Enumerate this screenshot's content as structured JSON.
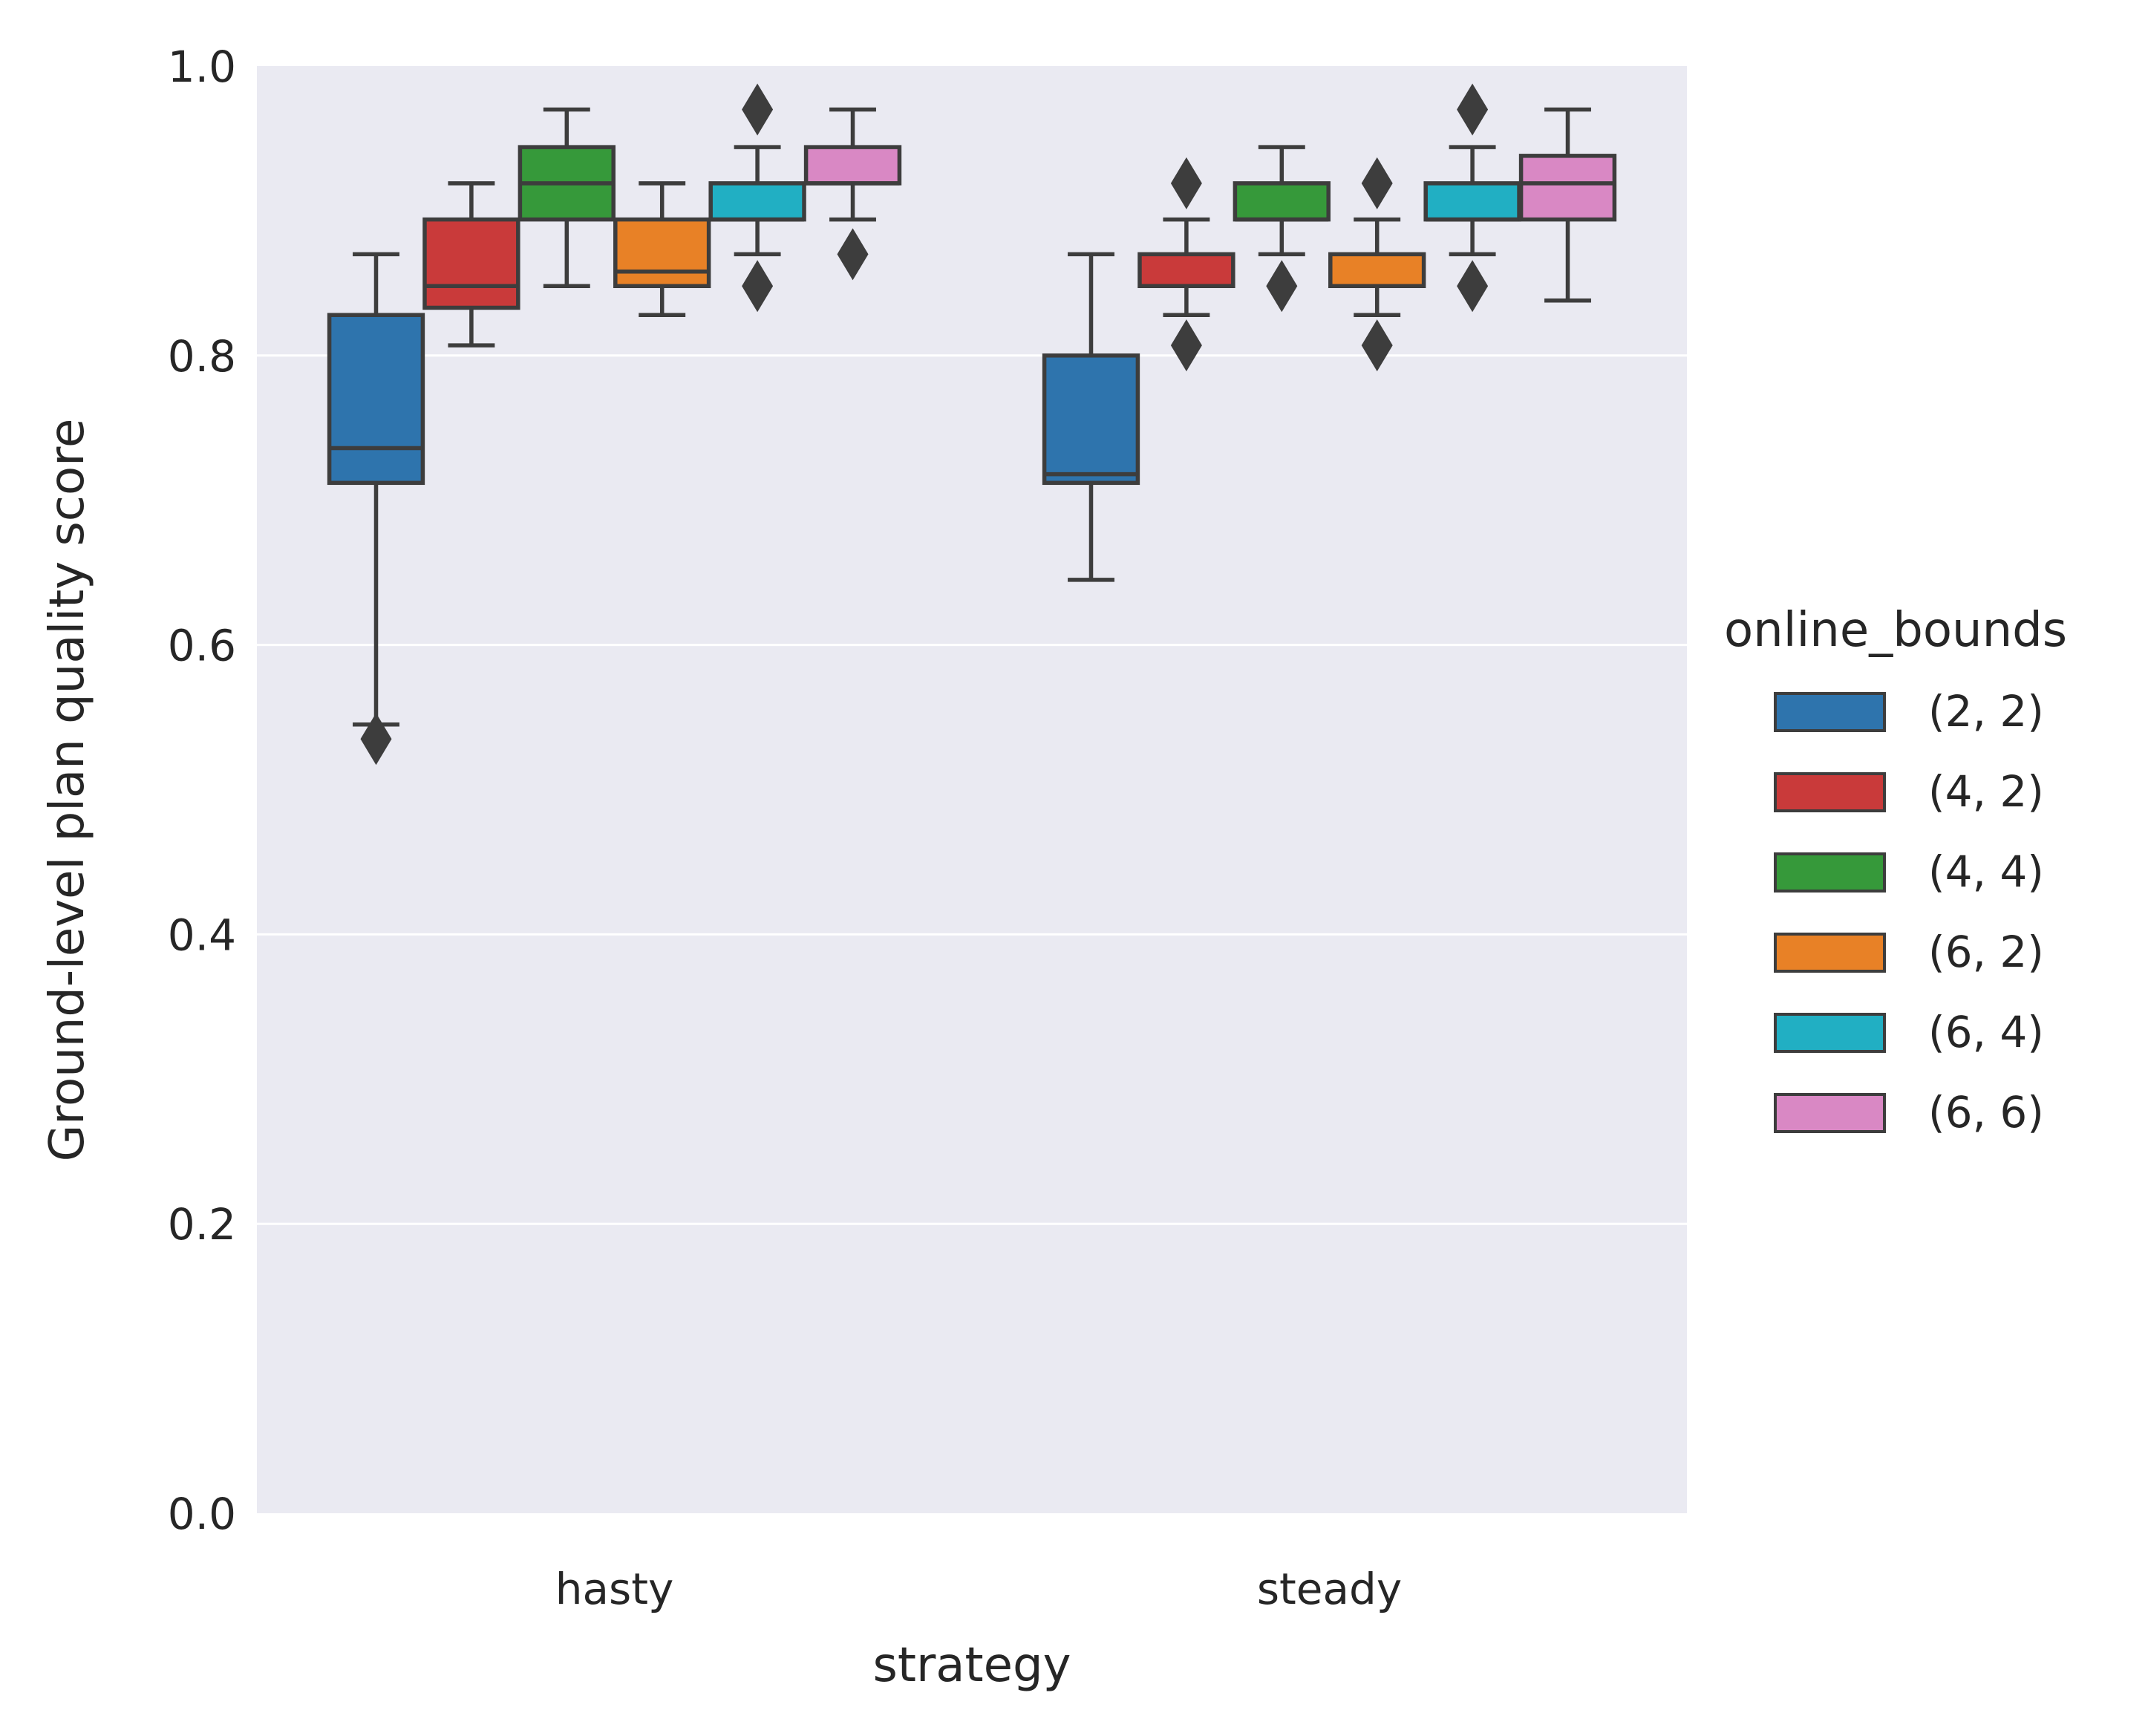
{
  "chart_data": {
    "type": "box",
    "xlabel": "strategy",
    "ylabel": "Ground-level plan quality score",
    "ylim": [
      0.0,
      1.0
    ],
    "yticks": [
      "0.0",
      "0.2",
      "0.4",
      "0.6",
      "0.8",
      "1.0"
    ],
    "grid": true,
    "categories": [
      "hasty",
      "steady"
    ],
    "legend": {
      "title": "online_bounds",
      "placement": "right",
      "entries": [
        "(2, 2)",
        "(4, 2)",
        "(4, 4)",
        "(6, 2)",
        "(6, 4)",
        "(6, 6)"
      ]
    },
    "colors": {
      "background": "#eaeaf2",
      "grid": "#ffffff",
      "line": "#3d3d3d",
      "series": [
        "#2e74ad",
        "#c93a3a",
        "#36993a",
        "#e88126",
        "#21afc3",
        "#d988c4"
      ]
    },
    "series": [
      {
        "name": "(2, 2)",
        "boxes": [
          {
            "whislo": 0.545,
            "q1": 0.712,
            "med": 0.736,
            "q3": 0.828,
            "whishi": 0.87,
            "fliers": [
              0.535
            ]
          },
          {
            "whislo": 0.645,
            "q1": 0.712,
            "med": 0.718,
            "q3": 0.8,
            "whishi": 0.87,
            "fliers": []
          }
        ]
      },
      {
        "name": "(4, 2)",
        "boxes": [
          {
            "whislo": 0.807,
            "q1": 0.833,
            "med": 0.848,
            "q3": 0.894,
            "whishi": 0.919,
            "fliers": []
          },
          {
            "whislo": 0.828,
            "q1": 0.848,
            "med": 0.848,
            "q3": 0.87,
            "whishi": 0.894,
            "fliers": [
              0.919,
              0.807
            ]
          }
        ]
      },
      {
        "name": "(4, 4)",
        "boxes": [
          {
            "whislo": 0.848,
            "q1": 0.894,
            "med": 0.919,
            "q3": 0.944,
            "whishi": 0.97,
            "fliers": []
          },
          {
            "whislo": 0.87,
            "q1": 0.894,
            "med": 0.894,
            "q3": 0.919,
            "whishi": 0.944,
            "fliers": [
              0.848
            ]
          }
        ]
      },
      {
        "name": "(6, 2)",
        "boxes": [
          {
            "whislo": 0.828,
            "q1": 0.848,
            "med": 0.858,
            "q3": 0.894,
            "whishi": 0.919,
            "fliers": []
          },
          {
            "whislo": 0.828,
            "q1": 0.848,
            "med": 0.848,
            "q3": 0.87,
            "whishi": 0.894,
            "fliers": [
              0.919,
              0.807
            ]
          }
        ]
      },
      {
        "name": "(6, 4)",
        "boxes": [
          {
            "whislo": 0.87,
            "q1": 0.894,
            "med": 0.894,
            "q3": 0.919,
            "whishi": 0.944,
            "fliers": [
              0.97,
              0.848
            ]
          },
          {
            "whislo": 0.87,
            "q1": 0.894,
            "med": 0.894,
            "q3": 0.919,
            "whishi": 0.944,
            "fliers": [
              0.97,
              0.848
            ]
          }
        ]
      },
      {
        "name": "(6, 6)",
        "boxes": [
          {
            "whislo": 0.894,
            "q1": 0.919,
            "med": 0.919,
            "q3": 0.944,
            "whishi": 0.97,
            "fliers": [
              0.87
            ]
          },
          {
            "whislo": 0.838,
            "q1": 0.894,
            "med": 0.919,
            "q3": 0.938,
            "whishi": 0.97,
            "fliers": []
          }
        ]
      }
    ]
  }
}
